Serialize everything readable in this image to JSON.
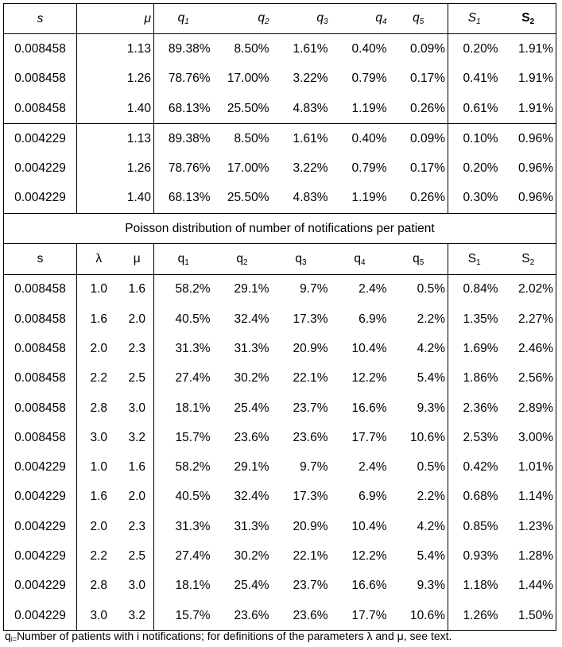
{
  "section1": {
    "header": {
      "s": "s",
      "mu": "μ",
      "q1": "q",
      "q2": "q",
      "q3": "q",
      "q4": "q",
      "q5": "q",
      "S1": "S",
      "S2": "S",
      "sub1": "1",
      "sub2": "2",
      "sub3": "3",
      "sub4": "4",
      "sub5": "5"
    },
    "groups": [
      [
        {
          "s": "0.008458",
          "mu": "1.13",
          "q1": "89.38%",
          "q2": "8.50%",
          "q3": "1.61%",
          "q4": "0.40%",
          "q5": "0.09%",
          "S1": "0.20%",
          "S2": "1.91%"
        },
        {
          "s": "0.008458",
          "mu": "1.26",
          "q1": "78.76%",
          "q2": "17.00%",
          "q3": "3.22%",
          "q4": "0.79%",
          "q5": "0.17%",
          "S1": "0.41%",
          "S2": "1.91%"
        },
        {
          "s": "0.008458",
          "mu": "1.40",
          "q1": "68.13%",
          "q2": "25.50%",
          "q3": "4.83%",
          "q4": "1.19%",
          "q5": "0.26%",
          "S1": "0.61%",
          "S2": "1.91%"
        }
      ],
      [
        {
          "s": "0.004229",
          "mu": "1.13",
          "q1": "89.38%",
          "q2": "8.50%",
          "q3": "1.61%",
          "q4": "0.40%",
          "q5": "0.09%",
          "S1": "0.10%",
          "S2": "0.96%"
        },
        {
          "s": "0.004229",
          "mu": "1.26",
          "q1": "78.76%",
          "q2": "17.00%",
          "q3": "3.22%",
          "q4": "0.79%",
          "q5": "0.17%",
          "S1": "0.20%",
          "S2": "0.96%"
        },
        {
          "s": "0.004229",
          "mu": "1.40",
          "q1": "68.13%",
          "q2": "25.50%",
          "q3": "4.83%",
          "q4": "1.19%",
          "q5": "0.26%",
          "S1": "0.30%",
          "S2": "0.96%"
        }
      ]
    ]
  },
  "caption": "Poisson distribution of number of notifications per patient",
  "section2": {
    "header": {
      "s": "s",
      "lambda": "λ",
      "mu": "μ",
      "q": "q",
      "S": "S",
      "sub1": "1",
      "sub2": "2",
      "sub3": "3",
      "sub4": "4",
      "sub5": "5"
    },
    "rows": [
      {
        "s": "0.008458",
        "lambda": "1.0",
        "mu": "1.6",
        "q1": "58.2%",
        "q2": "29.1%",
        "q3": "9.7%",
        "q4": "2.4%",
        "q5": "0.5%",
        "S1": "0.84%",
        "S2": "2.02%"
      },
      {
        "s": "0.008458",
        "lambda": "1.6",
        "mu": "2.0",
        "q1": "40.5%",
        "q2": "32.4%",
        "q3": "17.3%",
        "q4": "6.9%",
        "q5": "2.2%",
        "S1": "1.35%",
        "S2": "2.27%"
      },
      {
        "s": "0.008458",
        "lambda": "2.0",
        "mu": "2.3",
        "q1": "31.3%",
        "q2": "31.3%",
        "q3": "20.9%",
        "q4": "10.4%",
        "q5": "4.2%",
        "S1": "1.69%",
        "S2": "2.46%"
      },
      {
        "s": "0.008458",
        "lambda": "2.2",
        "mu": "2.5",
        "q1": "27.4%",
        "q2": "30.2%",
        "q3": "22.1%",
        "q4": "12.2%",
        "q5": "5.4%",
        "S1": "1.86%",
        "S2": "2.56%"
      },
      {
        "s": "0.008458",
        "lambda": "2.8",
        "mu": "3.0",
        "q1": "18.1%",
        "q2": "25.4%",
        "q3": "23.7%",
        "q4": "16.6%",
        "q5": "9.3%",
        "S1": "2.36%",
        "S2": "2.89%"
      },
      {
        "s": "0.008458",
        "lambda": "3.0",
        "mu": "3.2",
        "q1": "15.7%",
        "q2": "23.6%",
        "q3": "23.6%",
        "q4": "17.7%",
        "q5": "10.6%",
        "S1": "2.53%",
        "S2": "3.00%"
      },
      {
        "s": "0.004229",
        "lambda": "1.0",
        "mu": "1.6",
        "q1": "58.2%",
        "q2": "29.1%",
        "q3": "9.7%",
        "q4": "2.4%",
        "q5": "0.5%",
        "S1": "0.42%",
        "S2": "1.01%"
      },
      {
        "s": "0.004229",
        "lambda": "1.6",
        "mu": "2.0",
        "q1": "40.5%",
        "q2": "32.4%",
        "q3": "17.3%",
        "q4": "6.9%",
        "q5": "2.2%",
        "S1": "0.68%",
        "S2": "1.14%"
      },
      {
        "s": "0.004229",
        "lambda": "2.0",
        "mu": "2.3",
        "q1": "31.3%",
        "q2": "31.3%",
        "q3": "20.9%",
        "q4": "10.4%",
        "q5": "4.2%",
        "S1": "0.85%",
        "S2": "1.23%"
      },
      {
        "s": "0.004229",
        "lambda": "2.2",
        "mu": "2.5",
        "q1": "27.4%",
        "q2": "30.2%",
        "q3": "22.1%",
        "q4": "12.2%",
        "q5": "5.4%",
        "S1": "0.93%",
        "S2": "1.28%"
      },
      {
        "s": "0.004229",
        "lambda": "2.8",
        "mu": "3.0",
        "q1": "18.1%",
        "q2": "25.4%",
        "q3": "23.7%",
        "q4": "16.6%",
        "q5": "9.3%",
        "S1": "1.18%",
        "S2": "1.44%"
      },
      {
        "s": "0.004229",
        "lambda": "3.0",
        "mu": "3.2",
        "q1": "15.7%",
        "q2": "23.6%",
        "q3": "23.6%",
        "q4": "17.7%",
        "q5": "10.6%",
        "S1": "1.26%",
        "S2": "1.50%"
      }
    ]
  },
  "footnote": {
    "q": "q",
    "sub": "i=",
    "text": "Number of patients with i notifications; for definitions of the parameters λ and μ,  see text."
  }
}
